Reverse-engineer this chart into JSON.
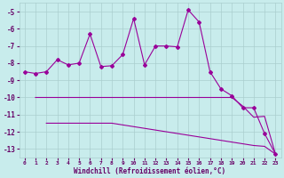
{
  "xlabel": "Windchill (Refroidissement éolien,°C)",
  "bg_color": "#c8ecec",
  "grid_color": "#aacece",
  "line_color": "#990099",
  "xlim": [
    -0.5,
    23.5
  ],
  "ylim": [
    -13.5,
    -4.5
  ],
  "yticks": [
    -13,
    -12,
    -11,
    -10,
    -9,
    -8,
    -7,
    -6,
    -5
  ],
  "xticks": [
    0,
    1,
    2,
    3,
    4,
    5,
    6,
    7,
    8,
    9,
    10,
    11,
    12,
    13,
    14,
    15,
    16,
    17,
    18,
    19,
    20,
    21,
    22,
    23
  ],
  "main_line_x": [
    0,
    1,
    2,
    3,
    4,
    5,
    6,
    7,
    8,
    9,
    10,
    11,
    12,
    13,
    14,
    15,
    16,
    17,
    18,
    19,
    20,
    21,
    22,
    23
  ],
  "main_line_y": [
    -8.5,
    -8.6,
    -8.5,
    -7.8,
    -8.1,
    -8.0,
    -6.3,
    -8.2,
    -8.15,
    -7.5,
    -5.4,
    -8.1,
    -7.0,
    -7.0,
    -7.05,
    -4.9,
    -5.6,
    -8.5,
    -9.5,
    -9.9,
    -10.6,
    -10.6,
    -12.1,
    -13.3
  ],
  "upper_band_x": [
    1,
    2,
    3,
    4,
    5,
    6,
    7,
    8,
    9,
    10,
    11,
    12,
    13,
    14,
    15,
    16,
    17,
    18,
    19,
    20,
    21,
    22,
    23
  ],
  "upper_band_y": [
    -10.0,
    -10.0,
    -10.0,
    -10.0,
    -10.0,
    -10.0,
    -10.0,
    -10.0,
    -10.0,
    -10.0,
    -10.0,
    -10.0,
    -10.0,
    -10.0,
    -10.0,
    -10.0,
    -10.0,
    -10.0,
    -10.0,
    -10.5,
    -11.15,
    -11.1,
    -13.3
  ],
  "lower_band_x": [
    2,
    3,
    4,
    5,
    6,
    7,
    8,
    9,
    10,
    11,
    12,
    13,
    14,
    15,
    16,
    17,
    18,
    19,
    20,
    21,
    22,
    23
  ],
  "lower_band_y": [
    -11.5,
    -11.5,
    -11.5,
    -11.5,
    -11.5,
    -11.5,
    -11.5,
    -11.6,
    -11.7,
    -11.8,
    -11.9,
    -12.0,
    -12.1,
    -12.2,
    -12.3,
    -12.4,
    -12.5,
    -12.6,
    -12.7,
    -12.8,
    -12.85,
    -13.3
  ]
}
